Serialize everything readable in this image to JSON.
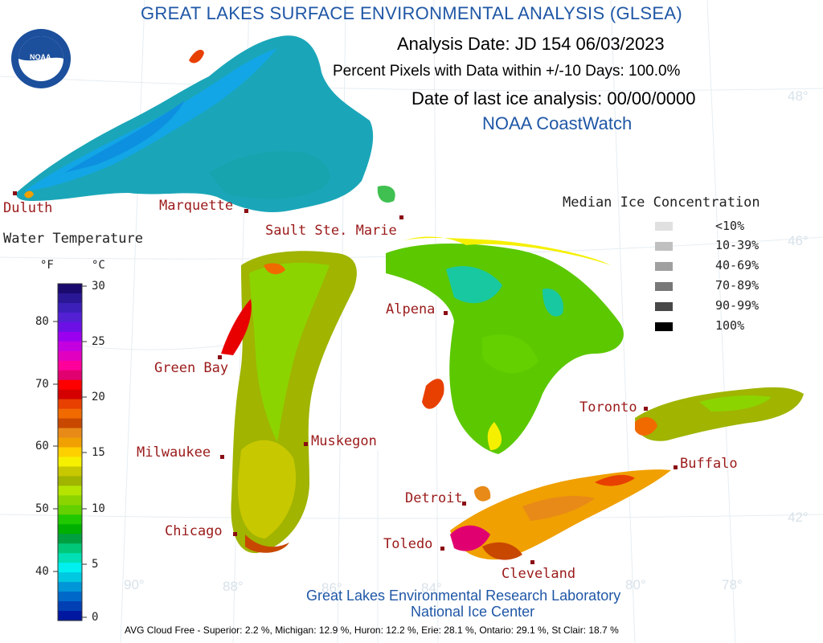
{
  "header": {
    "title": "GREAT LAKES SURFACE ENVIRONMENTAL ANALYSIS (GLSEA)",
    "analysis_date": "Analysis Date:  JD 154 06/03/2023",
    "percent_pixels": "Percent Pixels with Data within +/-10 Days: 100.0%",
    "last_ice": "Date of last ice analysis: 00/00/0000",
    "source": "NOAA CoastWatch"
  },
  "logo_text": "NOAA",
  "cities": {
    "duluth": "Duluth",
    "marquette": "Marquette",
    "sault": "Sault Ste. Marie",
    "green_bay": "Green Bay",
    "alpena": "Alpena",
    "milwaukee": "Milwaukee",
    "muskegon": "Muskegon",
    "chicago": "Chicago",
    "detroit": "Detroit",
    "toledo": "Toledo",
    "cleveland": "Cleveland",
    "toronto": "Toronto",
    "buffalo": "Buffalo"
  },
  "gridlabels": {
    "lat48": "48°",
    "lat46": "46°",
    "lat42": "42°",
    "lon90": "90°",
    "lon88": "88°",
    "lon86": "86°",
    "lon84": "84°",
    "lon80": "80°",
    "lon78": "78°"
  },
  "water_temp_legend": {
    "title": "Water Temperature",
    "unit_f": "°F",
    "unit_c": "°C",
    "f_ticks": [
      "80",
      "70",
      "60",
      "50",
      "40"
    ],
    "c_ticks": [
      "30",
      "25",
      "20",
      "15",
      "10",
      "5",
      "0"
    ],
    "colors": [
      "#1a0a6e",
      "#2a1796",
      "#3b1fb8",
      "#5320d4",
      "#6c10e6",
      "#9a00ef",
      "#c500e0",
      "#e200c0",
      "#ff009a",
      "#e00070",
      "#ff0000",
      "#d40000",
      "#e84000",
      "#f06a00",
      "#c84800",
      "#e88a18",
      "#f0a000",
      "#ffd000",
      "#f5f000",
      "#c8c800",
      "#a0b400",
      "#b4e400",
      "#8cd400",
      "#64d000",
      "#20c800",
      "#00b000",
      "#00a040",
      "#00c878",
      "#00e0b4",
      "#00f0f0",
      "#00c8e0",
      "#0096d8",
      "#0068c8",
      "#0040b4",
      "#0018a0"
    ]
  },
  "ice_legend": {
    "title": "Median Ice Concentration",
    "items": [
      {
        "label": "<10%",
        "color": "#e0e0e0"
      },
      {
        "label": "10-39%",
        "color": "#c0c0c0"
      },
      {
        "label": "40-69%",
        "color": "#a0a0a0"
      },
      {
        "label": "70-89%",
        "color": "#787878"
      },
      {
        "label": "90-99%",
        "color": "#484848"
      },
      {
        "label": "100%",
        "color": "#000000"
      }
    ]
  },
  "footer": {
    "lab1": "Great Lakes Environmental Research Laboratory",
    "lab2": "National Ice Center",
    "cloud_free": "AVG Cloud Free - Superior:   2.2 %, Michigan:  12.9 %, Huron:  12.2 %, Erie: 28.1 %, Ontario: 29.1 %, St Clair: 18.7 %"
  },
  "colors": {
    "title_blue": "#1f57a6",
    "city_label": "#9b1a1a"
  }
}
